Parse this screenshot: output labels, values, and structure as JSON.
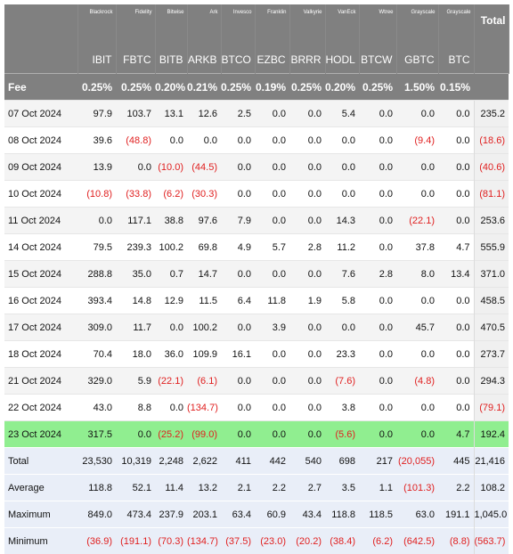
{
  "issuers": [
    "Blackrock",
    "Fidelity",
    "Bitwise",
    "Ark",
    "Invesco",
    "Franklin",
    "Valkyrie",
    "VanEck",
    "Wtree",
    "Grayscale",
    "Grayscale"
  ],
  "total_label": "Total",
  "tickers": [
    "IBIT",
    "FBTC",
    "BITB",
    "ARKB",
    "BTCO",
    "EZBC",
    "BRRR",
    "HODL",
    "BTCW",
    "GBTC",
    "BTC"
  ],
  "fee_row": {
    "label": "Fee",
    "values": [
      "0.25%",
      "0.25%",
      "0.20%",
      "0.21%",
      "0.25%",
      "0.19%",
      "0.25%",
      "0.20%",
      "0.25%",
      "1.50%",
      "0.15%"
    ]
  },
  "rows": [
    {
      "date": "07 Oct 2024",
      "values": [
        "97.9",
        "103.7",
        "13.1",
        "12.6",
        "2.5",
        "0.0",
        "0.0",
        "5.4",
        "0.0",
        "0.0",
        "0.0"
      ],
      "total": "235.2"
    },
    {
      "date": "08 Oct 2024",
      "values": [
        "39.6",
        "(48.8)",
        "0.0",
        "0.0",
        "0.0",
        "0.0",
        "0.0",
        "0.0",
        "0.0",
        "(9.4)",
        "0.0"
      ],
      "total": "(18.6)"
    },
    {
      "date": "09 Oct 2024",
      "values": [
        "13.9",
        "0.0",
        "(10.0)",
        "(44.5)",
        "0.0",
        "0.0",
        "0.0",
        "0.0",
        "0.0",
        "0.0",
        "0.0"
      ],
      "total": "(40.6)"
    },
    {
      "date": "10 Oct 2024",
      "values": [
        "(10.8)",
        "(33.8)",
        "(6.2)",
        "(30.3)",
        "0.0",
        "0.0",
        "0.0",
        "0.0",
        "0.0",
        "0.0",
        "0.0"
      ],
      "total": "(81.1)"
    },
    {
      "date": "11 Oct 2024",
      "values": [
        "0.0",
        "117.1",
        "38.8",
        "97.6",
        "7.9",
        "0.0",
        "0.0",
        "14.3",
        "0.0",
        "(22.1)",
        "0.0"
      ],
      "total": "253.6"
    },
    {
      "date": "14 Oct 2024",
      "values": [
        "79.5",
        "239.3",
        "100.2",
        "69.8",
        "4.9",
        "5.7",
        "2.8",
        "11.2",
        "0.0",
        "37.8",
        "4.7"
      ],
      "total": "555.9"
    },
    {
      "date": "15 Oct 2024",
      "values": [
        "288.8",
        "35.0",
        "0.7",
        "14.7",
        "0.0",
        "0.0",
        "0.0",
        "7.6",
        "2.8",
        "8.0",
        "13.4"
      ],
      "total": "371.0"
    },
    {
      "date": "16 Oct 2024",
      "values": [
        "393.4",
        "14.8",
        "12.9",
        "11.5",
        "6.4",
        "11.8",
        "1.9",
        "5.8",
        "0.0",
        "0.0",
        "0.0"
      ],
      "total": "458.5"
    },
    {
      "date": "17 Oct 2024",
      "values": [
        "309.0",
        "11.7",
        "0.0",
        "100.2",
        "0.0",
        "3.9",
        "0.0",
        "0.0",
        "0.0",
        "45.7",
        "0.0"
      ],
      "total": "470.5"
    },
    {
      "date": "18 Oct 2024",
      "values": [
        "70.4",
        "18.0",
        "36.0",
        "109.9",
        "16.1",
        "0.0",
        "0.0",
        "23.3",
        "0.0",
        "0.0",
        "0.0"
      ],
      "total": "273.7"
    },
    {
      "date": "21 Oct 2024",
      "values": [
        "329.0",
        "5.9",
        "(22.1)",
        "(6.1)",
        "0.0",
        "0.0",
        "0.0",
        "(7.6)",
        "0.0",
        "(4.8)",
        "0.0"
      ],
      "total": "294.3"
    },
    {
      "date": "22 Oct 2024",
      "values": [
        "43.0",
        "8.8",
        "0.0",
        "(134.7)",
        "0.0",
        "0.0",
        "0.0",
        "3.8",
        "0.0",
        "0.0",
        "0.0"
      ],
      "total": "(79.1)"
    },
    {
      "date": "23 Oct 2024",
      "values": [
        "317.5",
        "0.0",
        "(25.2)",
        "(99.0)",
        "0.0",
        "0.0",
        "0.0",
        "(5.6)",
        "0.0",
        "0.0",
        "4.7"
      ],
      "total": "192.4",
      "highlight": true
    }
  ],
  "stats": [
    {
      "label": "Total",
      "values": [
        "23,530",
        "10,319",
        "2,248",
        "2,622",
        "411",
        "442",
        "540",
        "698",
        "217",
        "(20,055)",
        "445"
      ],
      "total": "21,416"
    },
    {
      "label": "Average",
      "values": [
        "118.8",
        "52.1",
        "11.4",
        "13.2",
        "2.1",
        "2.2",
        "2.7",
        "3.5",
        "1.1",
        "(101.3)",
        "2.2"
      ],
      "total": "108.2"
    },
    {
      "label": "Maximum",
      "values": [
        "849.0",
        "473.4",
        "237.9",
        "203.1",
        "63.4",
        "60.9",
        "43.4",
        "118.8",
        "118.5",
        "63.0",
        "191.1"
      ],
      "total": "1,045.0"
    },
    {
      "label": "Minimum",
      "values": [
        "(36.9)",
        "(191.1)",
        "(70.3)",
        "(134.7)",
        "(37.5)",
        "(23.0)",
        "(20.2)",
        "(38.4)",
        "(6.2)",
        "(642.5)",
        "(8.8)"
      ],
      "total": "(563.7)"
    }
  ],
  "colors": {
    "header": "#808080",
    "highlight": "#90ee90",
    "negative": "#e02020",
    "stats_bg": "#e9eef8"
  }
}
